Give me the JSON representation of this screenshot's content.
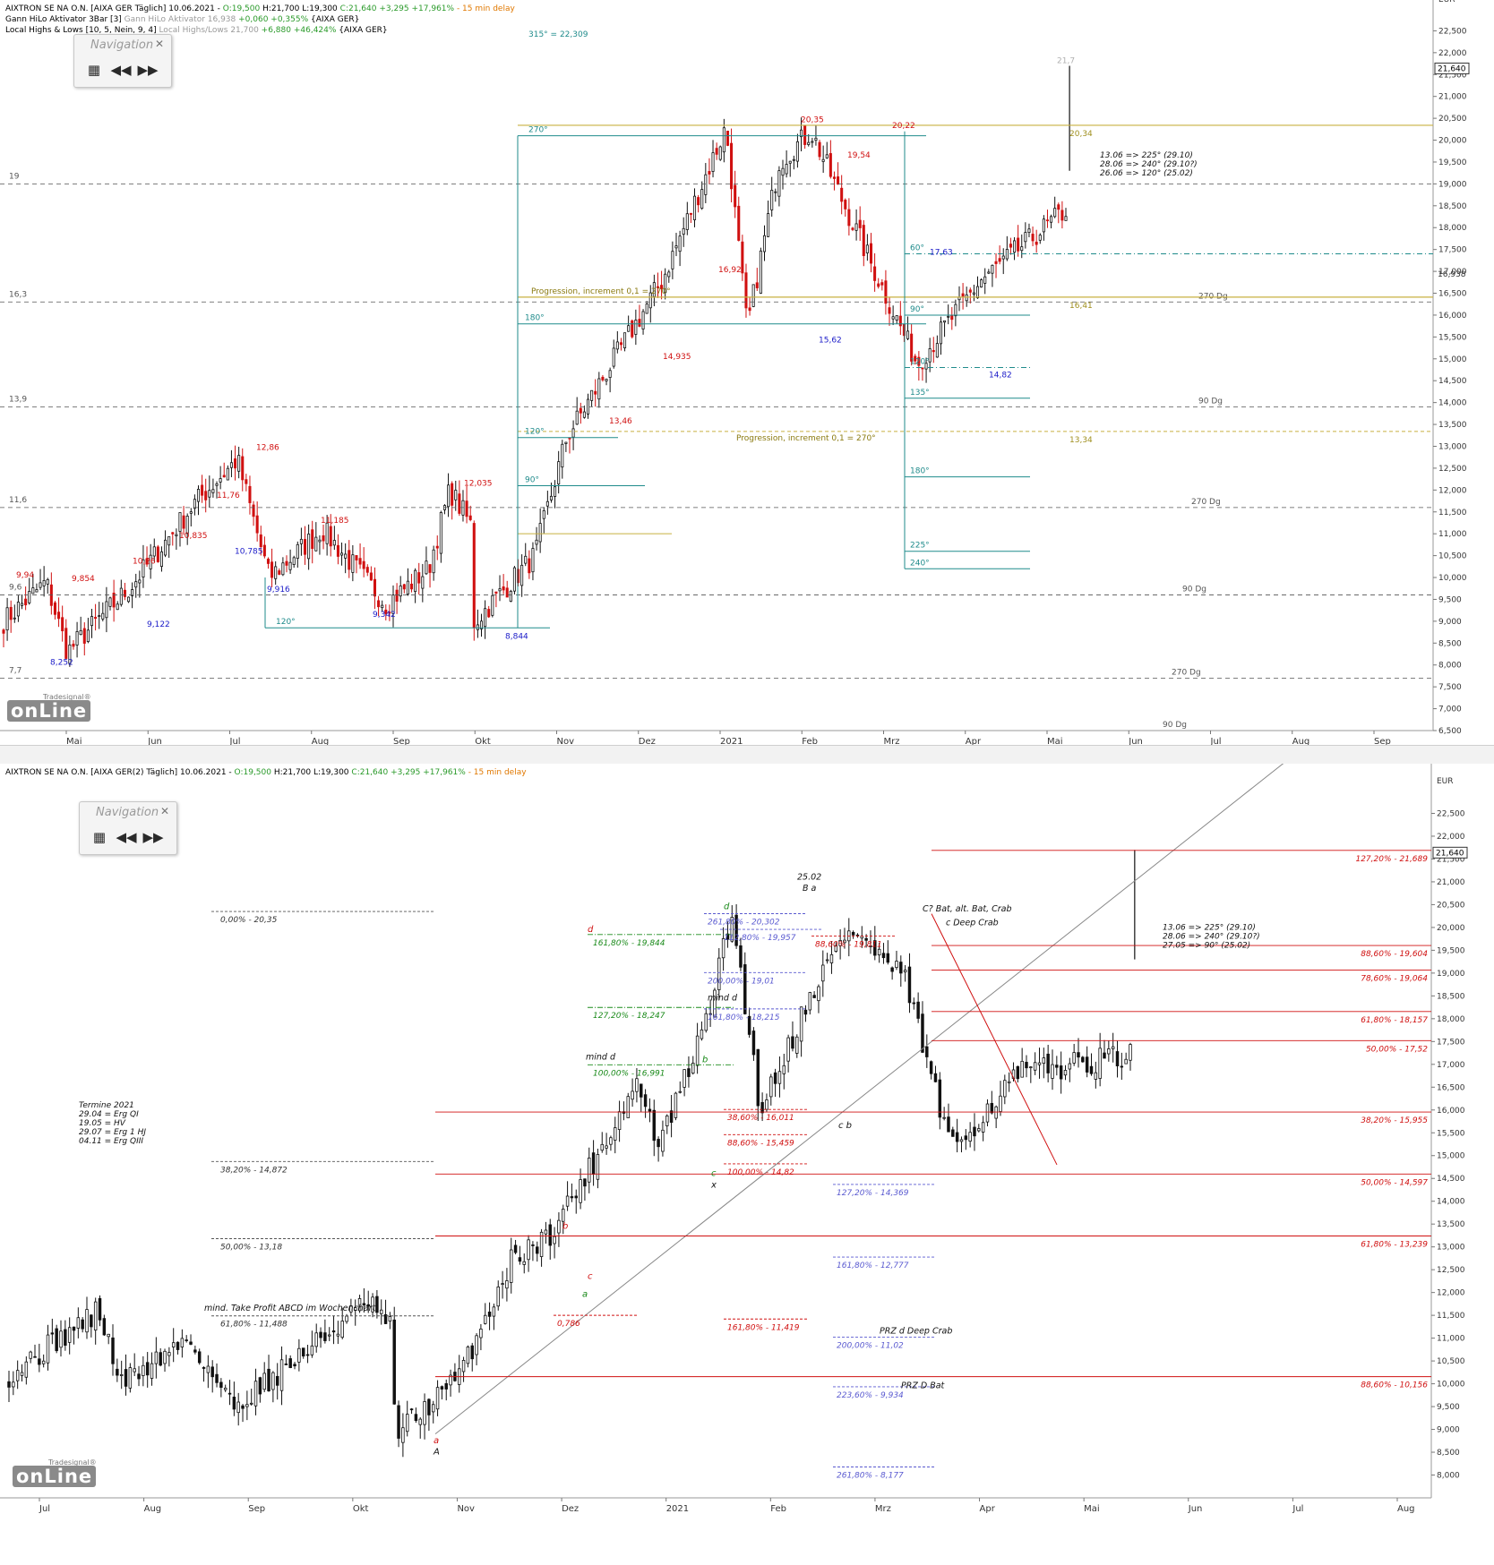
{
  "panel1": {
    "legend": [
      {
        "text": "AIXTRON SE NA O.N. [AIXA GER Täglich] 10.06.2021 - ",
        "color": "#000000"
      },
      {
        "text": "O:19,500",
        "color": "#2a9a2a"
      },
      {
        "text": " H:21,700 L:19,300 ",
        "color": "#000000"
      },
      {
        "text": "C:21,640 +3,295 +17,961%",
        "color": "#2a9a2a"
      },
      {
        "text": " - 15 min delay",
        "color": "#e07800"
      }
    ],
    "legend2": [
      {
        "text": "Gann HiLo Aktivator 3Bar [3] ",
        "color": "#000000"
      },
      {
        "text": "Gann HiLo Aktivator 16,938",
        "color": "#9a9a9a"
      },
      {
        "text": " +0,060 +0,355%",
        "color": "#2a9a2a"
      },
      {
        "text": " {AIXA GER}",
        "color": "#000000"
      }
    ],
    "legend3": [
      {
        "text": "Local Highs & Lows [10, 5, Nein, 9, 4] ",
        "color": "#000000"
      },
      {
        "text": "Local Highs/Lows 21,700",
        "color": "#9a9a9a"
      },
      {
        "text": " +6,880 +46,424%",
        "color": "#2a9a2a"
      },
      {
        "text": " {AIXA GER}",
        "color": "#000000"
      }
    ],
    "currency": "EUR",
    "nav_title": "Navigation",
    "logo_small": "Tradesignal®",
    "logo_big": "onLine"
  },
  "panel2": {
    "legend": [
      {
        "text": "AIXTRON SE NA O.N. [AIXA GER(2) Täglich] 10.06.2021 - ",
        "color": "#000000"
      },
      {
        "text": "O:19,500",
        "color": "#2a9a2a"
      },
      {
        "text": " H:21,700 L:19,300 ",
        "color": "#000000"
      },
      {
        "text": "C:21,640 +3,295 +17,961%",
        "color": "#2a9a2a"
      },
      {
        "text": " - 15 min delay",
        "color": "#e07800"
      }
    ],
    "currency": "EUR",
    "nav_title": "Navigation",
    "logo_small": "Tradesignal®",
    "logo_big": "onLine",
    "termine": [
      "Termine 2021",
      "29.04 = Erg QI",
      "19.05 = HV",
      "29.07 = Erg 1 HJ",
      "04.11 = Erg QIII"
    ]
  },
  "chart_data": [
    {
      "type": "candlestick",
      "title": "AIXTRON SE NA O.N. [AIXA GER Täglich]",
      "ylabel": "EUR",
      "ylim": [
        6.5,
        23.0
      ],
      "y_ticks": [
        "6,500",
        "7,000",
        "7,500",
        "8,000",
        "8,500",
        "9,000",
        "9,500",
        "10,000",
        "10,500",
        "11,000",
        "11,500",
        "12,000",
        "12,500",
        "13,000",
        "13,500",
        "14,000",
        "14,500",
        "15,000",
        "15,500",
        "16,000",
        "16,500",
        "17,000",
        "17,500",
        "18,000",
        "18,500",
        "19,000",
        "19,500",
        "20,000",
        "20,500",
        "21,000",
        "21,500",
        "22,000",
        "22,500"
      ],
      "x_ticks": [
        "Mai",
        "Jun",
        "Jul",
        "Aug",
        "Sep",
        "Okt",
        "Nov",
        "Dez",
        "2021",
        "Feb",
        "Mrz",
        "Apr",
        "Mai",
        "Jun",
        "Jul",
        "Aug",
        "Sep"
      ],
      "last_price": "21,640",
      "gann_value": "16,938",
      "swing_highs": [
        "9,94",
        "9,854",
        "10,26",
        "10,835",
        "11,76",
        "12,86",
        "11,185",
        "12,035",
        "13,46",
        "14,935",
        "16,92",
        "20,35",
        "19,54",
        "20,22",
        "21,7"
      ],
      "swing_lows": [
        "8,252",
        "9,122",
        "10,785",
        "9,916",
        "9,342",
        "8,844",
        "15,62",
        "17,63",
        "14,82"
      ],
      "left_levels": [
        "19",
        "16,3",
        "13,9",
        "11,6",
        "9,6",
        "7,7"
      ],
      "dg_labels": [
        "270 Dg",
        "90 Dg",
        "270 Dg",
        "90 Dg",
        "270 Dg",
        "90 Dg"
      ],
      "angle_labels_left": [
        "315° = 22,309",
        "270°",
        "180°",
        "120°",
        "90°",
        "120°"
      ],
      "angle_labels_right": [
        "60°",
        "90°",
        "120°",
        "135°",
        "180°",
        "225°",
        "240°"
      ],
      "progression_labels": [
        "Progression, increment 0,1 = 270°",
        "Progression, increment 0,1 = 270°"
      ],
      "right_value_labels": [
        "20,34",
        "16,41",
        "13,34"
      ],
      "note": [
        "13.06 => 225° (29.10)",
        "28.06 => 240° (29.10?)",
        "26.06 => 120° (25.02)"
      ]
    },
    {
      "type": "candlestick",
      "title": "AIXTRON SE NA O.N. [AIXA GER(2) Täglich]",
      "ylabel": "EUR",
      "ylim": [
        7.5,
        23.0
      ],
      "y_ticks": [
        "8,000",
        "8,500",
        "9,000",
        "9,500",
        "10,000",
        "10,500",
        "11,000",
        "11,500",
        "12,000",
        "12,500",
        "13,000",
        "13,500",
        "14,000",
        "14,500",
        "15,000",
        "15,500",
        "16,000",
        "16,500",
        "17,000",
        "17,500",
        "18,000",
        "18,500",
        "19,000",
        "19,500",
        "20,000",
        "20,500",
        "21,000",
        "21,500",
        "22,000",
        "22,500"
      ],
      "x_ticks": [
        "Jul",
        "Aug",
        "Sep",
        "Okt",
        "Nov",
        "Dez",
        "2021",
        "Feb",
        "Mrz",
        "Apr",
        "Mai",
        "Jun",
        "Jul",
        "Aug"
      ],
      "last_price": "21,640",
      "retracement_right": [
        "127,20% - 21,689",
        "88,60% - 19,604",
        "78,60% - 19,064",
        "61,80% - 18,157",
        "50,00% - 17,52",
        "38,20% - 15,955",
        "50,00% - 14,597",
        "61,80% - 13,239",
        "88,60% - 10,156"
      ],
      "retracement_left": [
        "0,00% - 20,35",
        "38,20% - 14,872",
        "50,00% - 13,18",
        "61,80% - 11,488"
      ],
      "abcd_green": [
        "161,80% - 19,844",
        "127,20% - 18,247",
        "100,00% - 16,991"
      ],
      "abcd_blue": [
        "261,80% - 20,302",
        "112,80% - 19,957",
        "200,00% - 19,01",
        "161,80% - 18,215",
        "127,20% - 14,369",
        "161,80% - 12,777",
        "200,00% - 11,02",
        "223,60% - 9,934",
        "261,80% - 8,177"
      ],
      "abcd_red": [
        "88,60% - 19,811",
        "38,60% - 16,011",
        "88,60% - 15,459",
        "100,00% - 14,82",
        "161,80% - 11,419",
        "0,786"
      ],
      "pattern_labels": [
        "C? Bat, alt. Bat, Crab",
        "c Deep Crab",
        "25.02",
        "B a",
        "mind d",
        "mind d",
        "PRZ d Deep Crab",
        "PRZ D Bat",
        "mind. Take Profit ABCD im Wochenchart"
      ],
      "note": [
        "13.06 => 225° (29.10)",
        "28.06 => 240° (29.10?)",
        "27.05 => 90° (25.02)"
      ]
    }
  ]
}
